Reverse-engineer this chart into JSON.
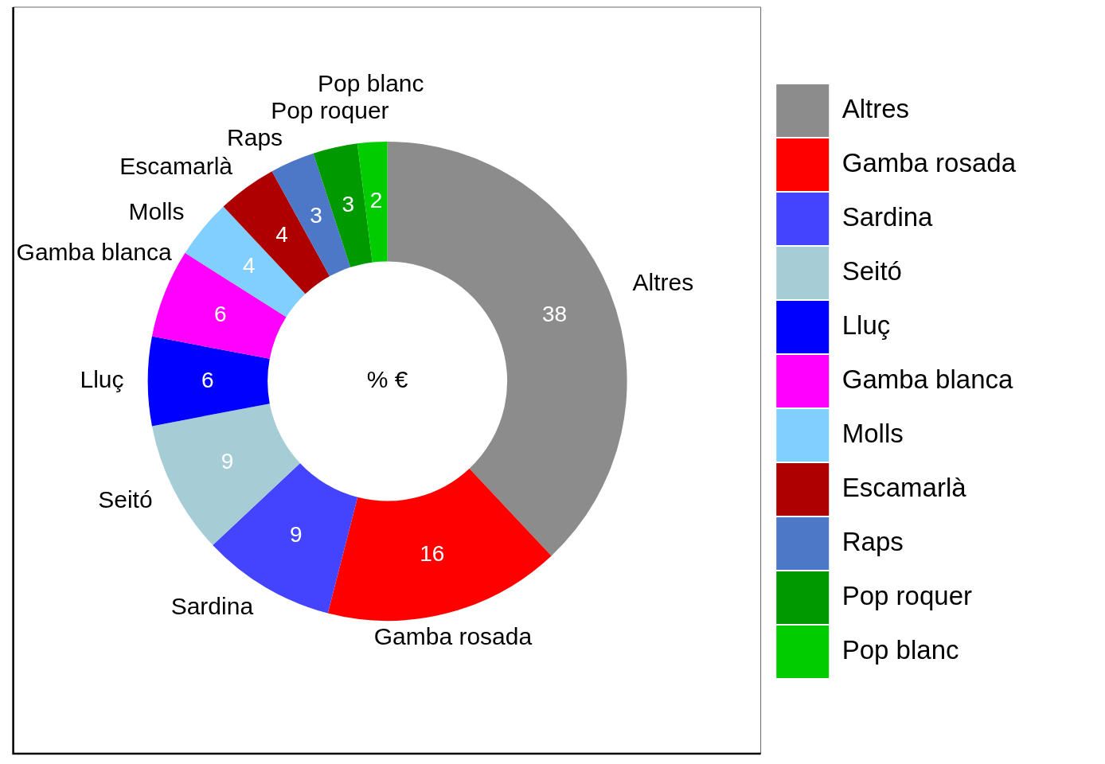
{
  "chart_data": {
    "type": "donut",
    "title": "% €",
    "categories": [
      "Altres",
      "Gamba rosada",
      "Sardina",
      "Seitó",
      "Lluç",
      "Gamba blanca",
      "Molls",
      "Escamarlà",
      "Raps",
      "Pop roquer",
      "Pop blanc"
    ],
    "values": [
      38,
      16,
      9,
      9,
      6,
      6,
      4,
      4,
      3,
      3,
      2
    ],
    "colors": [
      "#8c8c8c",
      "#ff0000",
      "#4444ff",
      "#a6cdd6",
      "#0000ff",
      "#ff00ff",
      "#80cfff",
      "#ae0000",
      "#4d77c7",
      "#009900",
      "#00cc00"
    ],
    "data_labels": true,
    "legend": "right"
  }
}
